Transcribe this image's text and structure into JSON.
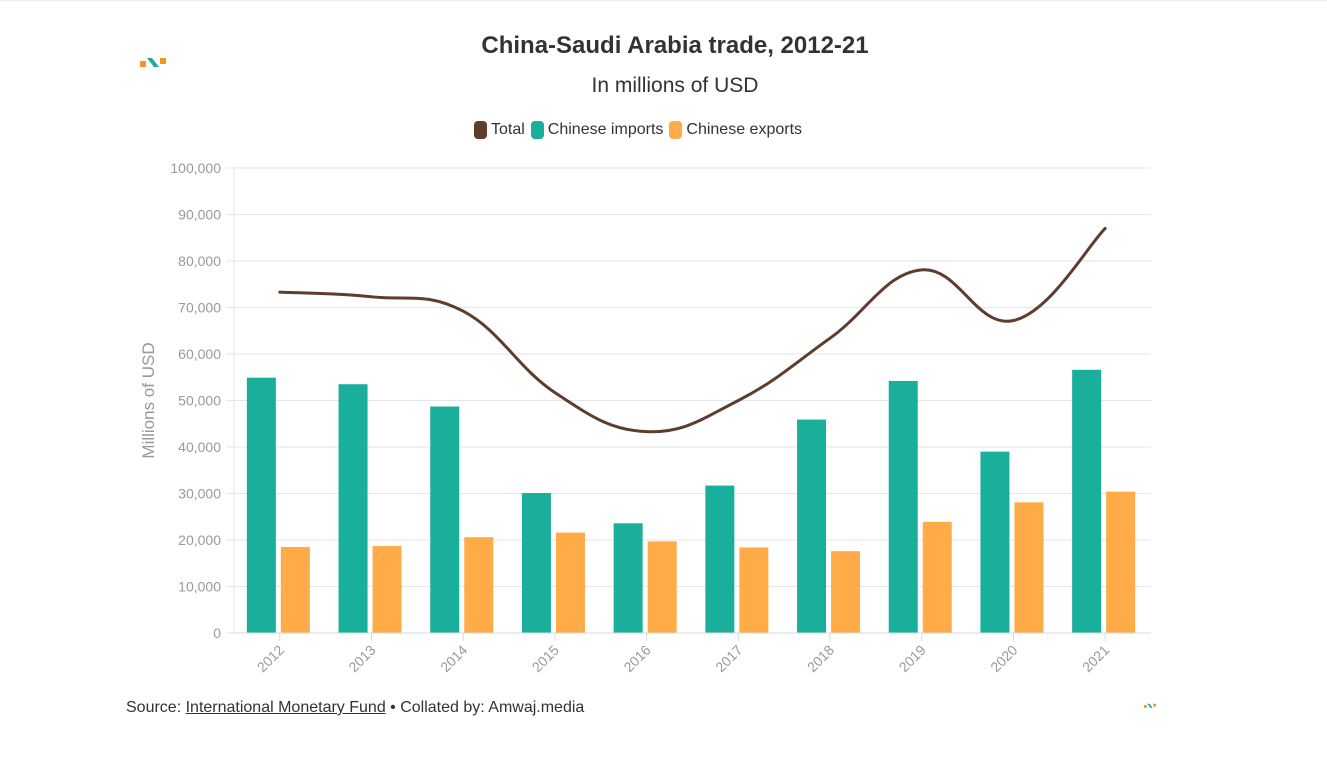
{
  "header": {
    "title": "China-Saudi Arabia trade, 2012-21",
    "subtitle": "In millions of USD"
  },
  "legend": {
    "total": "Total",
    "imports": "Chinese imports",
    "exports": "Chinese exports"
  },
  "footer": {
    "source_prefix": "Source: ",
    "source_link": "International Monetary Fund",
    "collated": " • Collated by: Amwaj.media"
  },
  "logo": {
    "icon": "amwaj-logo-icon"
  },
  "colors": {
    "imports": "#1aaf9b",
    "exports": "#ffab47",
    "total": "#5e3d2c",
    "grid": "#e6e6e6",
    "axis_text": "#999999"
  },
  "chart_data": {
    "type": "bar",
    "title": "China-Saudi Arabia trade, 2012-21",
    "subtitle": "In millions of USD",
    "xlabel": "",
    "ylabel": "Millions of USD",
    "ylim": [
      0,
      100000
    ],
    "yticks": [
      0,
      10000,
      20000,
      30000,
      40000,
      50000,
      60000,
      70000,
      80000,
      90000,
      100000
    ],
    "ytick_labels": [
      "0",
      "10,000",
      "20,000",
      "30,000",
      "40,000",
      "50,000",
      "60,000",
      "70,000",
      "80,000",
      "90,000",
      "100,000"
    ],
    "grid": true,
    "legend_position": "top-center",
    "categories": [
      "2012",
      "2013",
      "2014",
      "2015",
      "2016",
      "2017",
      "2018",
      "2019",
      "2020",
      "2021"
    ],
    "series": [
      {
        "name": "Chinese imports",
        "type": "bar",
        "values": [
          54900,
          53500,
          48700,
          30100,
          23600,
          31700,
          45900,
          54200,
          39000,
          56600
        ]
      },
      {
        "name": "Chinese exports",
        "type": "bar",
        "values": [
          18500,
          18700,
          20600,
          21600,
          19700,
          18400,
          17600,
          23900,
          28100,
          30400
        ]
      },
      {
        "name": "Total",
        "type": "line",
        "values": [
          73300,
          72300,
          69200,
          51700,
          43300,
          50000,
          63400,
          78100,
          67200,
          87000
        ]
      }
    ]
  }
}
